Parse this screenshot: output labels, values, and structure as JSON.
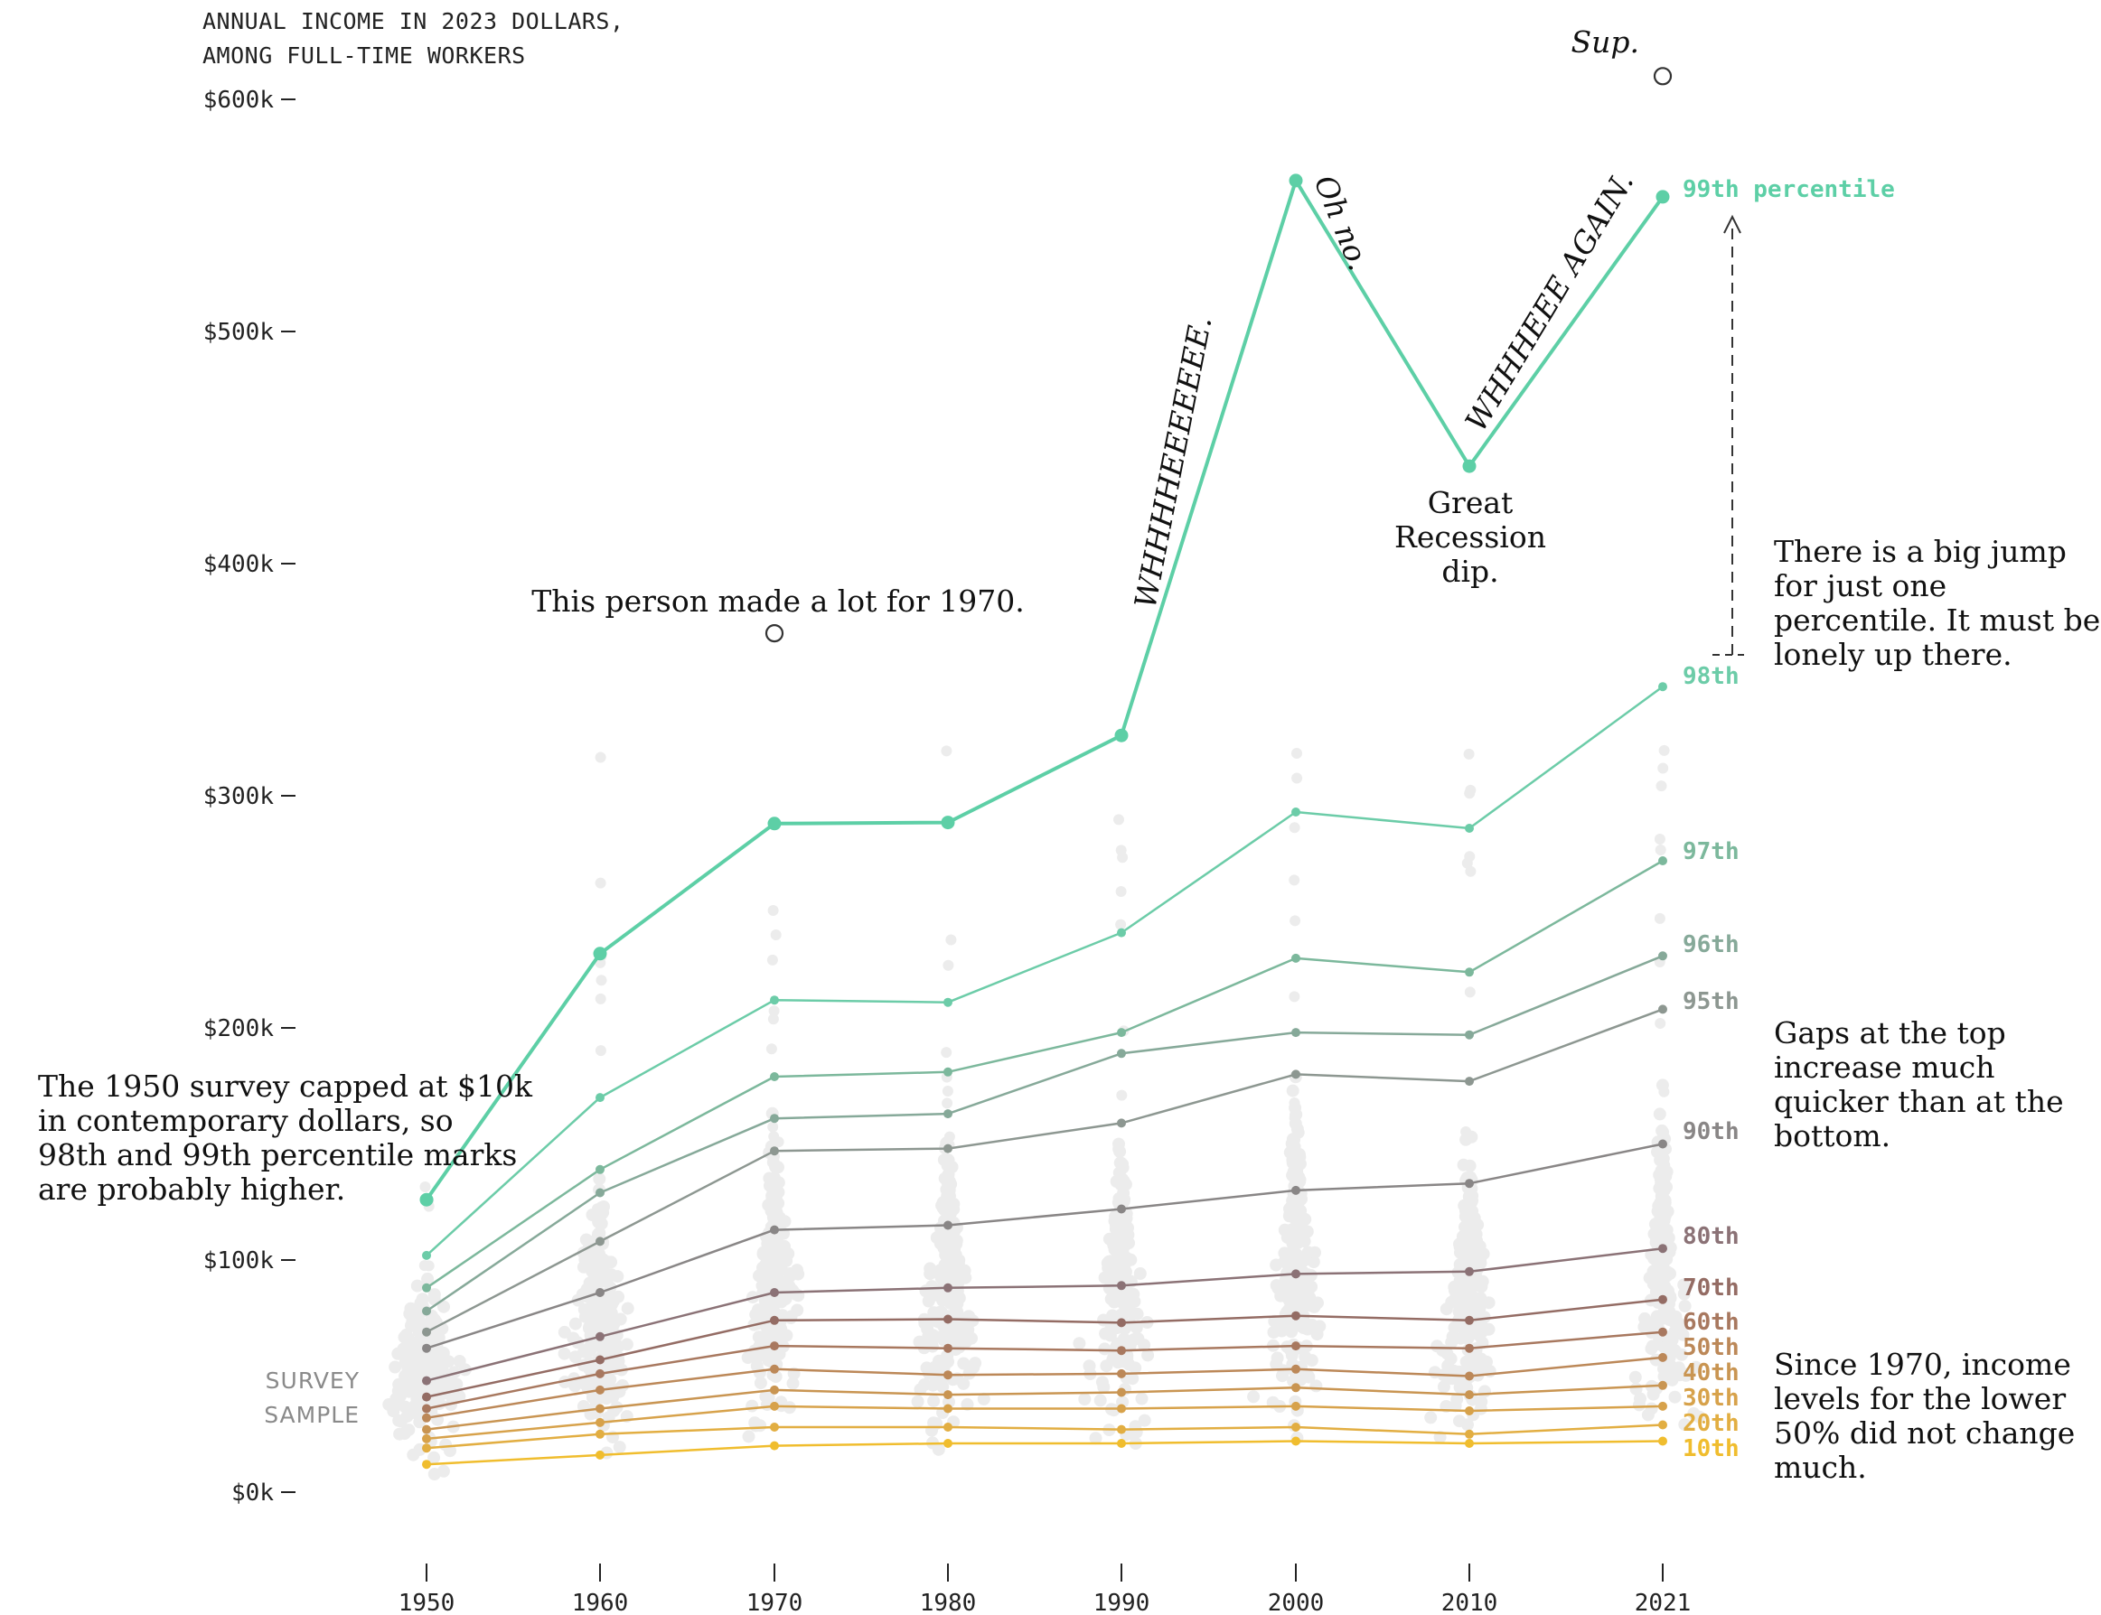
{
  "chart_data": {
    "type": "line",
    "title": "ANNUAL INCOME IN 2023 DOLLARS,\nAMONG FULL-TIME WORKERS",
    "title_lines": [
      "ANNUAL INCOME IN 2023 DOLLARS,",
      "AMONG FULL-TIME WORKERS"
    ],
    "x": [
      1950,
      1960,
      1970,
      1980,
      1990,
      2000,
      2010,
      2021
    ],
    "x_tick_labels": [
      "1950",
      "1960",
      "1970",
      "1980",
      "1990",
      "2000",
      "2010",
      "2021"
    ],
    "ylim": [
      0,
      600000
    ],
    "y_ticks": [
      0,
      100000,
      200000,
      300000,
      400000,
      500000,
      600000
    ],
    "y_tick_labels": [
      "$0k",
      "$100k",
      "$200k",
      "$300k",
      "$400k",
      "$500k",
      "$600k"
    ],
    "survey_label": [
      "SURVEY",
      "SAMPLE"
    ],
    "series": [
      {
        "name": "99th percentile",
        "label": "99th percentile",
        "color": "#5dcfa6",
        "values": [
          126000,
          232000,
          288000,
          288500,
          326000,
          565000,
          442000,
          558000
        ]
      },
      {
        "name": "98th",
        "label": "98th",
        "color": "#6ccca8",
        "values": [
          102000,
          170000,
          212000,
          211000,
          241000,
          293000,
          286000,
          347000
        ]
      },
      {
        "name": "97th",
        "label": "97th",
        "color": "#7cb89c",
        "values": [
          88000,
          139000,
          179000,
          181000,
          198000,
          230000,
          224000,
          272000
        ]
      },
      {
        "name": "96th",
        "label": "96th",
        "color": "#86a999",
        "values": [
          78000,
          129000,
          161000,
          163000,
          189000,
          198000,
          197000,
          231000
        ]
      },
      {
        "name": "95th",
        "label": "95th",
        "color": "#8d9791",
        "values": [
          69000,
          108000,
          147000,
          148000,
          159000,
          180000,
          177000,
          208000
        ]
      },
      {
        "name": "90th",
        "label": "90th",
        "color": "#898686",
        "values": [
          62000,
          86000,
          113000,
          115000,
          122000,
          130000,
          133000,
          150000
        ]
      },
      {
        "name": "80th",
        "label": "80th",
        "color": "#8b7276",
        "values": [
          48000,
          67000,
          86000,
          88000,
          89000,
          94000,
          95000,
          105000
        ]
      },
      {
        "name": "70th",
        "label": "70th",
        "color": "#946c64",
        "values": [
          41000,
          57000,
          74000,
          74500,
          73000,
          76000,
          74000,
          83000
        ]
      },
      {
        "name": "60th",
        "label": "60th",
        "color": "#a8785f",
        "values": [
          36000,
          51000,
          63000,
          62000,
          61000,
          63000,
          62000,
          69000
        ]
      },
      {
        "name": "50th",
        "label": "50th",
        "color": "#bc8858",
        "values": [
          32000,
          44000,
          53000,
          50500,
          51000,
          53000,
          50000,
          58000
        ]
      },
      {
        "name": "40th",
        "label": "40th",
        "color": "#c99552",
        "values": [
          27000,
          36000,
          44000,
          42000,
          43000,
          45000,
          42000,
          46000
        ]
      },
      {
        "name": "30th",
        "label": "30th",
        "color": "#d7a24b",
        "values": [
          23000,
          30000,
          37000,
          36000,
          36000,
          37000,
          35000,
          37000
        ]
      },
      {
        "name": "20th",
        "label": "20th",
        "color": "#e2ae42",
        "values": [
          19000,
          25000,
          28000,
          28000,
          27000,
          28000,
          25000,
          29000
        ]
      },
      {
        "name": "10th",
        "label": "10th",
        "color": "#f0bd2e",
        "values": [
          12000,
          16000,
          20000,
          21000,
          21000,
          22000,
          21000,
          22000
        ]
      }
    ],
    "outliers": [
      {
        "x": 1970,
        "y": 370000
      },
      {
        "x": 2021,
        "y": 610000
      }
    ],
    "annotations": {
      "sup": "Sup.",
      "person_1970": "This person made a lot for 1970.",
      "whee": "WHHHHEEEEEEE.",
      "oh_no": "Oh no.",
      "whee_again": "WHHHEEE AGAIN.",
      "great_recession": [
        "Great",
        "Recession",
        "dip."
      ],
      "big_jump": [
        "There is a big jump",
        "for just one",
        "percentile. It must be",
        "lonely up there."
      ],
      "survey_cap": [
        "The 1950 survey capped at $10k",
        "in contemporary dollars, so",
        "98th and 99th percentile marks",
        "are probably higher."
      ],
      "gaps_top": [
        "Gaps at the top",
        "increase much",
        "quicker than at the",
        "bottom."
      ],
      "since_1970": [
        "Since 1970, income",
        "levels for the lower",
        "50% did not change",
        "much."
      ]
    }
  }
}
